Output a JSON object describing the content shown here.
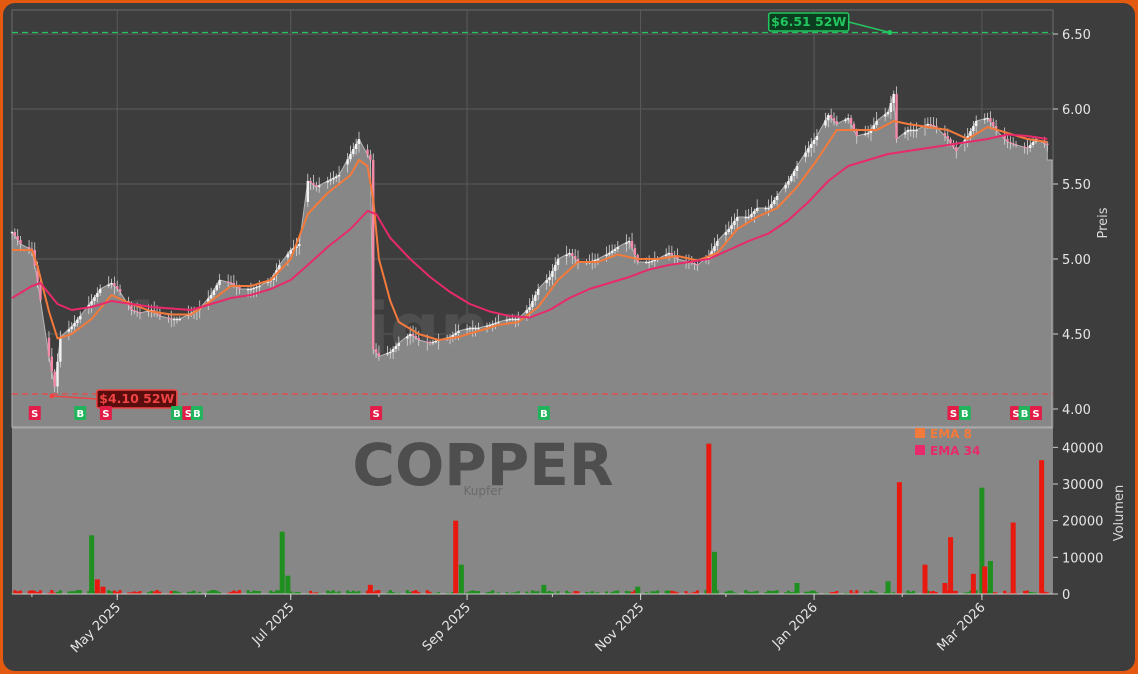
{
  "chart_data": {
    "type": "candlestick",
    "watermark": "forexsignale.trade",
    "symbol": "COPPER",
    "symbol_sub": "Kupfer",
    "price_axis": {
      "label": "Preis",
      "ylim": [
        3.88,
        6.66
      ],
      "ticks": [
        4.0,
        4.5,
        5.0,
        5.5,
        6.0,
        6.5
      ],
      "tick_labels": [
        "4.00",
        "4.50",
        "5.00",
        "5.50",
        "6.00",
        "6.50"
      ]
    },
    "volume_axis": {
      "label": "Volumen",
      "ylim": [
        0,
        45000
      ],
      "ticks": [
        0,
        10000,
        20000,
        30000,
        40000
      ],
      "tick_labels": [
        "0",
        "10000",
        "20000",
        "30000",
        "40000"
      ]
    },
    "x_axis": {
      "range": [
        "2025-03-25",
        "2026-03-26"
      ],
      "ticks": [
        {
          "date": "2025-05-01",
          "label": "May 2025"
        },
        {
          "date": "2025-07-01",
          "label": "Jul 2025"
        },
        {
          "date": "2025-09-01",
          "label": "Sep 2025"
        },
        {
          "date": "2025-11-01",
          "label": "Nov 2025"
        },
        {
          "date": "2026-01-01",
          "label": "Jan 2026"
        },
        {
          "date": "2026-03-01",
          "label": "Mar 2026"
        }
      ]
    },
    "high_52w": {
      "value": 6.51,
      "label": "$6.51 52W",
      "date": "2026-01-29",
      "color": "#22c55e"
    },
    "low_52w": {
      "value": 4.1,
      "label": "$4.10 52W",
      "date": "2025-04-08",
      "color": "#ef4444"
    },
    "legend": [
      {
        "name": "EMA 8",
        "color": "#f47a3b"
      },
      {
        "name": "EMA 34",
        "color": "#e8296b"
      }
    ],
    "price_points": [
      [
        "2025-03-25",
        5.18
      ],
      [
        "2025-03-28",
        5.1
      ],
      [
        "2025-04-01",
        5.06
      ],
      [
        "2025-04-03",
        4.85
      ],
      [
        "2025-04-07",
        4.35
      ],
      [
        "2025-04-09",
        4.15
      ],
      [
        "2025-04-11",
        4.48
      ],
      [
        "2025-04-15",
        4.55
      ],
      [
        "2025-04-18",
        4.62
      ],
      [
        "2025-04-22",
        4.72
      ],
      [
        "2025-04-25",
        4.8
      ],
      [
        "2025-04-29",
        4.84
      ],
      [
        "2025-05-02",
        4.78
      ],
      [
        "2025-05-06",
        4.66
      ],
      [
        "2025-05-09",
        4.64
      ],
      [
        "2025-05-13",
        4.66
      ],
      [
        "2025-05-16",
        4.62
      ],
      [
        "2025-05-20",
        4.6
      ],
      [
        "2025-05-23",
        4.6
      ],
      [
        "2025-05-27",
        4.64
      ],
      [
        "2025-05-30",
        4.67
      ],
      [
        "2025-06-03",
        4.76
      ],
      [
        "2025-06-06",
        4.86
      ],
      [
        "2025-06-10",
        4.84
      ],
      [
        "2025-06-13",
        4.8
      ],
      [
        "2025-06-17",
        4.8
      ],
      [
        "2025-06-20",
        4.82
      ],
      [
        "2025-06-24",
        4.86
      ],
      [
        "2025-06-27",
        4.96
      ],
      [
        "2025-07-01",
        5.06
      ],
      [
        "2025-07-04",
        5.1
      ],
      [
        "2025-07-07",
        5.52
      ],
      [
        "2025-07-10",
        5.48
      ],
      [
        "2025-07-14",
        5.52
      ],
      [
        "2025-07-18",
        5.56
      ],
      [
        "2025-07-22",
        5.7
      ],
      [
        "2025-07-25",
        5.8
      ],
      [
        "2025-07-29",
        5.66
      ],
      [
        "2025-07-30",
        4.4
      ],
      [
        "2025-08-01",
        4.35
      ],
      [
        "2025-08-05",
        4.38
      ],
      [
        "2025-08-08",
        4.44
      ],
      [
        "2025-08-12",
        4.5
      ],
      [
        "2025-08-15",
        4.46
      ],
      [
        "2025-08-19",
        4.44
      ],
      [
        "2025-08-22",
        4.46
      ],
      [
        "2025-08-26",
        4.48
      ],
      [
        "2025-08-29",
        4.52
      ],
      [
        "2025-09-02",
        4.54
      ],
      [
        "2025-09-05",
        4.54
      ],
      [
        "2025-09-09",
        4.56
      ],
      [
        "2025-09-12",
        4.58
      ],
      [
        "2025-09-16",
        4.6
      ],
      [
        "2025-09-19",
        4.6
      ],
      [
        "2025-09-23",
        4.68
      ],
      [
        "2025-09-26",
        4.8
      ],
      [
        "2025-09-30",
        4.88
      ],
      [
        "2025-10-03",
        5.0
      ],
      [
        "2025-10-07",
        5.04
      ],
      [
        "2025-10-10",
        4.98
      ],
      [
        "2025-10-14",
        4.98
      ],
      [
        "2025-10-17",
        5.0
      ],
      [
        "2025-10-21",
        5.04
      ],
      [
        "2025-10-24",
        5.08
      ],
      [
        "2025-10-28",
        5.12
      ],
      [
        "2025-10-31",
        4.98
      ],
      [
        "2025-11-04",
        4.98
      ],
      [
        "2025-11-07",
        5.0
      ],
      [
        "2025-11-11",
        5.04
      ],
      [
        "2025-11-14",
        5.0
      ],
      [
        "2025-11-18",
        4.98
      ],
      [
        "2025-11-21",
        4.96
      ],
      [
        "2025-11-25",
        5.02
      ],
      [
        "2025-11-28",
        5.12
      ],
      [
        "2025-12-02",
        5.2
      ],
      [
        "2025-12-05",
        5.28
      ],
      [
        "2025-12-09",
        5.28
      ],
      [
        "2025-12-12",
        5.34
      ],
      [
        "2025-12-16",
        5.34
      ],
      [
        "2025-12-19",
        5.42
      ],
      [
        "2025-12-23",
        5.52
      ],
      [
        "2025-12-26",
        5.62
      ],
      [
        "2025-12-30",
        5.74
      ],
      [
        "2026-01-02",
        5.82
      ],
      [
        "2026-01-06",
        5.96
      ],
      [
        "2026-01-09",
        5.9
      ],
      [
        "2026-01-13",
        5.94
      ],
      [
        "2026-01-16",
        5.82
      ],
      [
        "2026-01-20",
        5.84
      ],
      [
        "2026-01-23",
        5.92
      ],
      [
        "2026-01-27",
        5.98
      ],
      [
        "2026-01-29",
        6.1
      ],
      [
        "2026-01-30",
        5.8
      ],
      [
        "2026-02-03",
        5.86
      ],
      [
        "2026-02-06",
        5.86
      ],
      [
        "2026-02-10",
        5.9
      ],
      [
        "2026-02-13",
        5.88
      ],
      [
        "2026-02-17",
        5.8
      ],
      [
        "2026-02-20",
        5.72
      ],
      [
        "2026-02-24",
        5.82
      ],
      [
        "2026-02-27",
        5.92
      ],
      [
        "2026-03-03",
        5.94
      ],
      [
        "2026-03-06",
        5.86
      ],
      [
        "2026-03-10",
        5.78
      ],
      [
        "2026-03-13",
        5.76
      ],
      [
        "2026-03-17",
        5.74
      ],
      [
        "2026-03-20",
        5.8
      ],
      [
        "2026-03-24",
        5.76
      ]
    ],
    "last_value": 5.66,
    "series": [
      {
        "name": "EMA 8",
        "color": "#f47a3b",
        "points": [
          [
            "2025-03-25",
            5.06
          ],
          [
            "2025-04-01",
            5.06
          ],
          [
            "2025-04-03",
            4.95
          ],
          [
            "2025-04-07",
            4.65
          ],
          [
            "2025-04-10",
            4.47
          ],
          [
            "2025-04-15",
            4.5
          ],
          [
            "2025-04-22",
            4.6
          ],
          [
            "2025-04-29",
            4.76
          ],
          [
            "2025-05-06",
            4.7
          ],
          [
            "2025-05-13",
            4.65
          ],
          [
            "2025-05-20",
            4.63
          ],
          [
            "2025-05-27",
            4.63
          ],
          [
            "2025-06-03",
            4.72
          ],
          [
            "2025-06-10",
            4.82
          ],
          [
            "2025-06-17",
            4.82
          ],
          [
            "2025-06-24",
            4.86
          ],
          [
            "2025-07-01",
            5.0
          ],
          [
            "2025-07-07",
            5.3
          ],
          [
            "2025-07-14",
            5.44
          ],
          [
            "2025-07-22",
            5.56
          ],
          [
            "2025-07-25",
            5.66
          ],
          [
            "2025-07-28",
            5.62
          ],
          [
            "2025-07-30",
            5.4
          ],
          [
            "2025-08-01",
            5.0
          ],
          [
            "2025-08-05",
            4.72
          ],
          [
            "2025-08-08",
            4.58
          ],
          [
            "2025-08-15",
            4.5
          ],
          [
            "2025-08-22",
            4.46
          ],
          [
            "2025-08-29",
            4.48
          ],
          [
            "2025-09-05",
            4.52
          ],
          [
            "2025-09-12",
            4.56
          ],
          [
            "2025-09-19",
            4.58
          ],
          [
            "2025-09-26",
            4.68
          ],
          [
            "2025-10-03",
            4.86
          ],
          [
            "2025-10-10",
            4.98
          ],
          [
            "2025-10-17",
            4.98
          ],
          [
            "2025-10-24",
            5.03
          ],
          [
            "2025-10-31",
            5.0
          ],
          [
            "2025-11-07",
            5.0
          ],
          [
            "2025-11-14",
            5.02
          ],
          [
            "2025-11-21",
            4.99
          ],
          [
            "2025-11-28",
            5.04
          ],
          [
            "2025-12-05",
            5.2
          ],
          [
            "2025-12-12",
            5.28
          ],
          [
            "2025-12-19",
            5.34
          ],
          [
            "2025-12-26",
            5.48
          ],
          [
            "2026-01-02",
            5.66
          ],
          [
            "2026-01-09",
            5.86
          ],
          [
            "2026-01-16",
            5.86
          ],
          [
            "2026-01-23",
            5.86
          ],
          [
            "2026-01-29",
            5.92
          ],
          [
            "2026-02-03",
            5.9
          ],
          [
            "2026-02-10",
            5.88
          ],
          [
            "2026-02-17",
            5.86
          ],
          [
            "2026-02-24",
            5.8
          ],
          [
            "2026-03-03",
            5.88
          ],
          [
            "2026-03-10",
            5.84
          ],
          [
            "2026-03-17",
            5.8
          ],
          [
            "2026-03-24",
            5.78
          ]
        ]
      },
      {
        "name": "EMA 34",
        "color": "#e8296b",
        "points": [
          [
            "2025-03-25",
            4.74
          ],
          [
            "2025-04-01",
            4.82
          ],
          [
            "2025-04-04",
            4.84
          ],
          [
            "2025-04-10",
            4.7
          ],
          [
            "2025-04-15",
            4.66
          ],
          [
            "2025-04-22",
            4.68
          ],
          [
            "2025-04-29",
            4.72
          ],
          [
            "2025-05-06",
            4.7
          ],
          [
            "2025-05-13",
            4.68
          ],
          [
            "2025-05-20",
            4.67
          ],
          [
            "2025-05-27",
            4.66
          ],
          [
            "2025-06-03",
            4.7
          ],
          [
            "2025-06-10",
            4.74
          ],
          [
            "2025-06-17",
            4.76
          ],
          [
            "2025-06-24",
            4.8
          ],
          [
            "2025-07-01",
            4.86
          ],
          [
            "2025-07-07",
            4.96
          ],
          [
            "2025-07-14",
            5.08
          ],
          [
            "2025-07-22",
            5.2
          ],
          [
            "2025-07-28",
            5.32
          ],
          [
            "2025-07-31",
            5.3
          ],
          [
            "2025-08-05",
            5.14
          ],
          [
            "2025-08-12",
            5.0
          ],
          [
            "2025-08-19",
            4.88
          ],
          [
            "2025-08-26",
            4.78
          ],
          [
            "2025-09-02",
            4.7
          ],
          [
            "2025-09-09",
            4.65
          ],
          [
            "2025-09-16",
            4.62
          ],
          [
            "2025-09-23",
            4.61
          ],
          [
            "2025-09-30",
            4.66
          ],
          [
            "2025-10-07",
            4.74
          ],
          [
            "2025-10-14",
            4.8
          ],
          [
            "2025-10-21",
            4.84
          ],
          [
            "2025-10-28",
            4.88
          ],
          [
            "2025-11-04",
            4.93
          ],
          [
            "2025-11-11",
            4.96
          ],
          [
            "2025-11-18",
            4.98
          ],
          [
            "2025-11-25",
            5.0
          ],
          [
            "2025-12-02",
            5.06
          ],
          [
            "2025-12-09",
            5.12
          ],
          [
            "2025-12-16",
            5.17
          ],
          [
            "2025-12-23",
            5.26
          ],
          [
            "2025-12-30",
            5.38
          ],
          [
            "2026-01-06",
            5.52
          ],
          [
            "2026-01-13",
            5.62
          ],
          [
            "2026-01-20",
            5.66
          ],
          [
            "2026-01-27",
            5.7
          ],
          [
            "2026-02-03",
            5.72
          ],
          [
            "2026-02-10",
            5.74
          ],
          [
            "2026-02-17",
            5.76
          ],
          [
            "2026-02-24",
            5.78
          ],
          [
            "2026-03-03",
            5.8
          ],
          [
            "2026-03-10",
            5.83
          ],
          [
            "2026-03-17",
            5.82
          ],
          [
            "2026-03-24",
            5.8
          ]
        ]
      }
    ],
    "signals": [
      {
        "type": "S",
        "date": "2025-04-02"
      },
      {
        "type": "B",
        "date": "2025-04-18"
      },
      {
        "type": "S",
        "date": "2025-04-27"
      },
      {
        "type": "B",
        "date": "2025-05-22"
      },
      {
        "type": "S",
        "date": "2025-05-26"
      },
      {
        "type": "B",
        "date": "2025-05-29"
      },
      {
        "type": "S",
        "date": "2025-07-31"
      },
      {
        "type": "B",
        "date": "2025-09-28"
      },
      {
        "type": "S",
        "date": "2026-02-19"
      },
      {
        "type": "B",
        "date": "2026-02-23"
      },
      {
        "type": "S",
        "date": "2026-03-13"
      },
      {
        "type": "B",
        "date": "2026-03-16"
      },
      {
        "type": "S",
        "date": "2026-03-20"
      }
    ],
    "volume": [
      {
        "date": "2025-04-01",
        "value": 1000,
        "color": "red"
      },
      {
        "date": "2025-04-22",
        "value": 16000,
        "color": "green"
      },
      {
        "date": "2025-04-24",
        "value": 4000,
        "color": "red"
      },
      {
        "date": "2025-04-26",
        "value": 2000,
        "color": "red"
      },
      {
        "date": "2025-06-28",
        "value": 17000,
        "color": "green"
      },
      {
        "date": "2025-06-30",
        "value": 5000,
        "color": "green"
      },
      {
        "date": "2025-07-29",
        "value": 2500,
        "color": "red"
      },
      {
        "date": "2025-08-28",
        "value": 20000,
        "color": "red"
      },
      {
        "date": "2025-08-30",
        "value": 8000,
        "color": "green"
      },
      {
        "date": "2025-09-28",
        "value": 2500,
        "color": "green"
      },
      {
        "date": "2025-10-31",
        "value": 2000,
        "color": "green"
      },
      {
        "date": "2025-11-25",
        "value": 41000,
        "color": "red"
      },
      {
        "date": "2025-11-27",
        "value": 11500,
        "color": "green"
      },
      {
        "date": "2025-12-26",
        "value": 3000,
        "color": "green"
      },
      {
        "date": "2026-01-27",
        "value": 3500,
        "color": "green"
      },
      {
        "date": "2026-01-31",
        "value": 30500,
        "color": "red"
      },
      {
        "date": "2026-02-09",
        "value": 8000,
        "color": "red"
      },
      {
        "date": "2026-02-16",
        "value": 3000,
        "color": "red"
      },
      {
        "date": "2026-02-18",
        "value": 15500,
        "color": "red"
      },
      {
        "date": "2026-02-26",
        "value": 5500,
        "color": "red"
      },
      {
        "date": "2026-03-01",
        "value": 29000,
        "color": "green"
      },
      {
        "date": "2026-03-02",
        "value": 7500,
        "color": "red"
      },
      {
        "date": "2026-03-04",
        "value": 9000,
        "color": "green"
      },
      {
        "date": "2026-03-12",
        "value": 19500,
        "color": "red"
      },
      {
        "date": "2026-03-22",
        "value": 36500,
        "color": "red"
      }
    ],
    "colors": {
      "area": "#878787",
      "grid": "#5a5a5a",
      "up": "#1f8f1f",
      "down": "#e81a10",
      "buy": "#21b45c",
      "sell": "#e11d48"
    }
  }
}
